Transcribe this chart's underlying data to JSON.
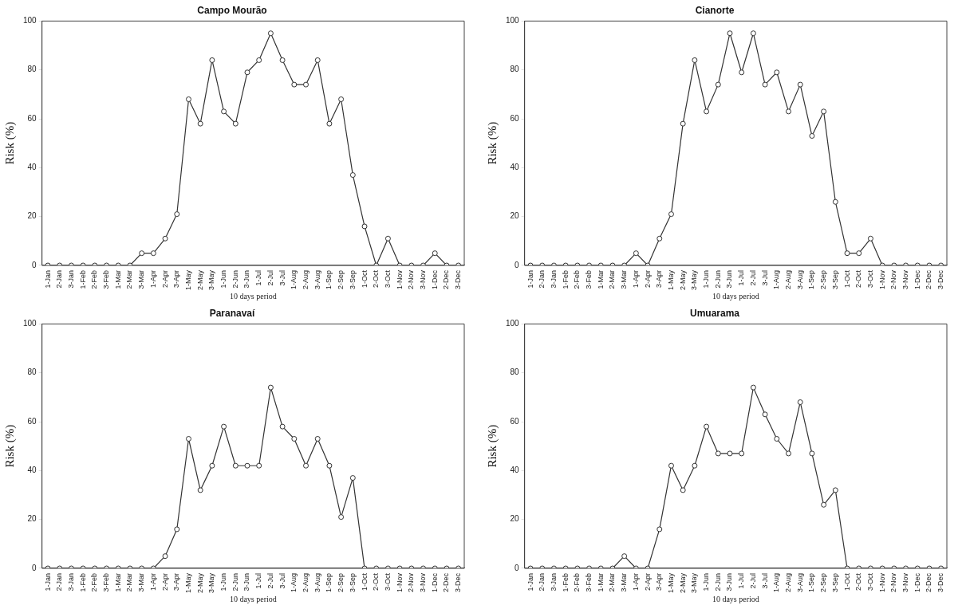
{
  "chart_data": [
    {
      "type": "line",
      "title": "Campo Mourão",
      "xlabel": "10 days period",
      "ylabel": "Risk (%)",
      "ylim": [
        0,
        100
      ],
      "yticks": [
        0,
        20,
        40,
        60,
        80,
        100
      ],
      "grid": false,
      "legend": false,
      "marker": "circle",
      "line_style": "solid",
      "categories": [
        "1-Jan",
        "2-Jan",
        "3-Jan",
        "1-Feb",
        "2-Feb",
        "3-Feb",
        "1-Mar",
        "2-Mar",
        "3-Mar",
        "1-Apr",
        "2-Apr",
        "3-Apr",
        "1-May",
        "2-May",
        "3-May",
        "1-Jun",
        "2-Jun",
        "3-Jun",
        "1-Jul",
        "2-Jul",
        "3-Jul",
        "1-Aug",
        "2-Aug",
        "3-Aug",
        "1-Sep",
        "2-Sep",
        "3-Sep",
        "1-Oct",
        "2-Oct",
        "3-Oct",
        "1-Nov",
        "2-Nov",
        "3-Nov",
        "1-Dec",
        "2-Dec",
        "3-Dec"
      ],
      "series": [
        {
          "color": "#333333",
          "values": [
            0,
            0,
            0,
            0,
            0,
            0,
            0,
            0,
            5,
            5,
            11,
            21,
            68,
            58,
            84,
            63,
            58,
            79,
            84,
            95,
            84,
            74,
            74,
            84,
            58,
            68,
            37,
            16,
            0,
            11,
            0,
            0,
            0,
            5,
            0,
            0
          ]
        }
      ]
    },
    {
      "type": "line",
      "title": "Cianorte",
      "xlabel": "10 days period",
      "ylabel": "Risk (%)",
      "ylim": [
        0,
        100
      ],
      "yticks": [
        0,
        20,
        40,
        60,
        80,
        100
      ],
      "grid": false,
      "legend": false,
      "marker": "circle",
      "line_style": "solid",
      "categories": [
        "1-Jan",
        "2-Jan",
        "3-Jan",
        "1-Feb",
        "2-Feb",
        "3-Feb",
        "1-Mar",
        "2-Mar",
        "3-Mar",
        "1-Apr",
        "2-Apr",
        "3-Apr",
        "1-May",
        "2-May",
        "3-May",
        "1-Jun",
        "2-Jun",
        "3-Jun",
        "1-Jul",
        "2-Jul",
        "3-Jul",
        "1-Aug",
        "2-Aug",
        "3-Aug",
        "1-Sep",
        "2-Sep",
        "3-Sep",
        "1-Oct",
        "2-Oct",
        "3-Oct",
        "1-Nov",
        "2-Nov",
        "3-Nov",
        "1-Dec",
        "2-Dec",
        "3-Dec"
      ],
      "series": [
        {
          "color": "#333333",
          "values": [
            0,
            0,
            0,
            0,
            0,
            0,
            0,
            0,
            0,
            5,
            0,
            11,
            21,
            58,
            84,
            63,
            74,
            95,
            79,
            95,
            74,
            79,
            63,
            74,
            53,
            63,
            26,
            5,
            5,
            11,
            0,
            0,
            0,
            0,
            0,
            0
          ]
        }
      ]
    },
    {
      "type": "line",
      "title": "Paranavaí",
      "xlabel": "10 days period",
      "ylabel": "Risk (%)",
      "ylim": [
        0,
        100
      ],
      "yticks": [
        0,
        20,
        40,
        60,
        80,
        100
      ],
      "grid": false,
      "legend": false,
      "marker": "circle",
      "line_style": "solid",
      "categories": [
        "1-Jan",
        "2-Jan",
        "3-Jan",
        "1-Feb",
        "2-Feb",
        "3-Feb",
        "1-Mar",
        "2-Mar",
        "3-Mar",
        "1-Apr",
        "2-Apr",
        "3-Apr",
        "1-May",
        "2-May",
        "3-May",
        "1-Jun",
        "2-Jun",
        "3-Jun",
        "1-Jul",
        "2-Jul",
        "3-Jul",
        "1-Aug",
        "2-Aug",
        "3-Aug",
        "1-Sep",
        "2-Sep",
        "3-Sep",
        "1-Oct",
        "2-Oct",
        "3-Oct",
        "1-Nov",
        "2-Nov",
        "3-Nov",
        "1-Dec",
        "2-Dec",
        "3-Dec"
      ],
      "series": [
        {
          "color": "#333333",
          "values": [
            0,
            0,
            0,
            0,
            0,
            0,
            0,
            0,
            0,
            0,
            5,
            16,
            53,
            32,
            42,
            58,
            42,
            42,
            42,
            74,
            58,
            53,
            42,
            53,
            42,
            21,
            37,
            0,
            0,
            0,
            0,
            0,
            0,
            0,
            0,
            0
          ]
        }
      ]
    },
    {
      "type": "line",
      "title": "Umuarama",
      "xlabel": "10 days period",
      "ylabel": "Risk (%)",
      "ylim": [
        0,
        100
      ],
      "yticks": [
        0,
        20,
        40,
        60,
        80,
        100
      ],
      "grid": false,
      "legend": false,
      "marker": "circle",
      "line_style": "solid",
      "categories": [
        "1-Jan",
        "2-Jan",
        "3-Jan",
        "1-Feb",
        "2-Feb",
        "3-Feb",
        "1-Mar",
        "2-Mar",
        "3-Mar",
        "1-Apr",
        "2-Apr",
        "3-Apr",
        "1-May",
        "2-May",
        "3-May",
        "1-Jun",
        "2-Jun",
        "3-Jun",
        "1-Jul",
        "2-Jul",
        "3-Jul",
        "1-Aug",
        "2-Aug",
        "3-Aug",
        "1-Sep",
        "2-Sep",
        "3-Sep",
        "1-Oct",
        "2-Oct",
        "3-Oct",
        "1-Nov",
        "2-Nov",
        "3-Nov",
        "1-Dec",
        "2-Dec",
        "3-Dec"
      ],
      "series": [
        {
          "color": "#333333",
          "values": [
            0,
            0,
            0,
            0,
            0,
            0,
            0,
            0,
            5,
            0,
            0,
            16,
            42,
            32,
            42,
            58,
            47,
            47,
            47,
            74,
            63,
            53,
            47,
            68,
            47,
            26,
            32,
            0,
            0,
            0,
            0,
            0,
            0,
            0,
            0,
            0
          ]
        }
      ]
    }
  ]
}
